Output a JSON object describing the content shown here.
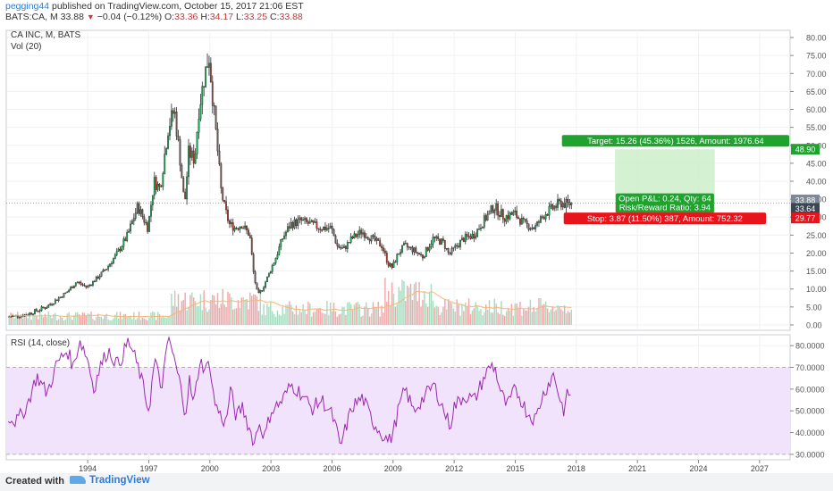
{
  "header": {
    "author": "pegging44",
    "published": " published on TradingView.com, October 15, 2017 21:06 EST",
    "symbol": "BATS:CA, M",
    "last": "33.88",
    "change": "−0.04 (−0.12%)",
    "o_label": "O:",
    "o_val": "33.36",
    "h_label": "H:",
    "h_val": "34.17",
    "l_label": "L:",
    "l_val": "33.25",
    "c_label": "C:",
    "c_val": "33.88"
  },
  "footer": {
    "created_with": "Created with",
    "brand": "TradingView"
  },
  "colors": {
    "up": "#26a65b",
    "down": "#c0392b",
    "vol_up": "#a8dcc1",
    "vol_down": "#f2a7ab",
    "rsi_line": "#9c27b0",
    "rsi_band": "#f1e3fb",
    "target": "#1fa22e",
    "stop": "#e8141c",
    "vol_ma": "#f5b775"
  },
  "chart_data": [
    {
      "type": "candlestick",
      "title": "CA INC, M, BATS",
      "volume_label": "Vol (20)",
      "x_ticks": [
        "1994",
        "1997",
        "2000",
        "2003",
        "2006",
        "2009",
        "2012",
        "2015",
        "2018",
        "2021",
        "2024",
        "2027"
      ],
      "x_range": [
        1990.0,
        2028.5
      ],
      "y_ticks": [
        "0.00",
        "5.00",
        "10.00",
        "15.00",
        "20.00",
        "25.00",
        "30.00",
        "35.00",
        "40.00",
        "45.00",
        "50.00",
        "55.00",
        "60.00",
        "65.00",
        "70.00",
        "75.00",
        "80.00"
      ],
      "y_range": [
        -1.5,
        82.0
      ],
      "price_path": [
        [
          1990.0,
          2.2
        ],
        [
          1991.0,
          2.8
        ],
        [
          1992.0,
          5.0
        ],
        [
          1993.0,
          9.0
        ],
        [
          1993.5,
          12.0
        ],
        [
          1994.0,
          10.5
        ],
        [
          1994.5,
          13.0
        ],
        [
          1995.0,
          16.0
        ],
        [
          1995.5,
          20.0
        ],
        [
          1996.0,
          25.0
        ],
        [
          1996.5,
          33.0
        ],
        [
          1997.0,
          27.0
        ],
        [
          1997.3,
          40.0
        ],
        [
          1997.6,
          38.0
        ],
        [
          1998.0,
          55.0
        ],
        [
          1998.3,
          60.0
        ],
        [
          1998.6,
          45.0
        ],
        [
          1998.8,
          33.0
        ],
        [
          1999.0,
          48.0
        ],
        [
          1999.3,
          46.0
        ],
        [
          1999.5,
          60.0
        ],
        [
          1999.8,
          70.0
        ],
        [
          2000.0,
          75.0
        ],
        [
          2000.2,
          62.0
        ],
        [
          2000.4,
          50.0
        ],
        [
          2000.6,
          37.0
        ],
        [
          2000.8,
          32.0
        ],
        [
          2001.0,
          28.0
        ],
        [
          2001.3,
          27.0
        ],
        [
          2001.6,
          28.0
        ],
        [
          2002.0,
          25.0
        ],
        [
          2002.2,
          14.0
        ],
        [
          2002.4,
          8.0
        ],
        [
          2002.7,
          11.0
        ],
        [
          2003.0,
          15.0
        ],
        [
          2003.3,
          19.0
        ],
        [
          2003.6,
          24.0
        ],
        [
          2004.0,
          28.0
        ],
        [
          2004.5,
          29.0
        ],
        [
          2005.0,
          28.0
        ],
        [
          2005.5,
          27.0
        ],
        [
          2006.0,
          27.0
        ],
        [
          2006.3,
          22.0
        ],
        [
          2006.6,
          21.0
        ],
        [
          2007.0,
          24.0
        ],
        [
          2007.5,
          26.0
        ],
        [
          2008.0,
          24.0
        ],
        [
          2008.5,
          22.0
        ],
        [
          2008.8,
          17.0
        ],
        [
          2009.0,
          16.0
        ],
        [
          2009.3,
          20.0
        ],
        [
          2009.6,
          22.0
        ],
        [
          2010.0,
          21.0
        ],
        [
          2010.5,
          19.0
        ],
        [
          2011.0,
          24.0
        ],
        [
          2011.5,
          23.0
        ],
        [
          2011.8,
          19.5
        ],
        [
          2012.0,
          21.0
        ],
        [
          2012.5,
          24.0
        ],
        [
          2013.0,
          25.0
        ],
        [
          2013.5,
          29.0
        ],
        [
          2014.0,
          33.0
        ],
        [
          2014.5,
          30.0
        ],
        [
          2015.0,
          31.0
        ],
        [
          2015.5,
          28.0
        ],
        [
          2016.0,
          27.0
        ],
        [
          2016.5,
          31.0
        ],
        [
          2017.0,
          33.0
        ],
        [
          2017.3,
          34.0
        ],
        [
          2017.6,
          33.5
        ],
        [
          2017.8,
          33.88
        ]
      ],
      "current_price": 33.88,
      "dotted_line_price": 33.88,
      "position": {
        "entry": 33.64,
        "target_price": 48.9,
        "stop_price": 29.77,
        "start_x": 2019.9,
        "end_x": 2024.8,
        "target_label": "Target: 15.26 (45.36%) 1526, Amount: 1976.64",
        "open_label": "Open P&L: 0.24, Qty: 64",
        "rr_label": "Risk/Reward Ratio: 3.94",
        "stop_label": "Stop: 3.87 (11.50%) 387, Amount: 752.32",
        "target_badge": "48.90",
        "current_badge": "33.88",
        "entry_badge": "33.64",
        "stop_badge": "29.77"
      }
    },
    {
      "type": "line",
      "title": "RSI (14, close)",
      "y_ticks": [
        "30.0000",
        "40.0000",
        "50.0000",
        "60.0000",
        "70.0000",
        "80.0000"
      ],
      "y_range": [
        27.5,
        85.0
      ],
      "band": [
        30,
        70
      ],
      "rsi_path": [
        [
          1990.0,
          48
        ],
        [
          1990.5,
          45
        ],
        [
          1991.0,
          52
        ],
        [
          1991.5,
          66
        ],
        [
          1992.0,
          58
        ],
        [
          1992.5,
          72
        ],
        [
          1993.0,
          78
        ],
        [
          1993.3,
          70
        ],
        [
          1993.6,
          83
        ],
        [
          1994.0,
          74
        ],
        [
          1994.3,
          60
        ],
        [
          1994.6,
          70
        ],
        [
          1995.0,
          78
        ],
        [
          1995.5,
          71
        ],
        [
          1996.0,
          82
        ],
        [
          1996.3,
          75
        ],
        [
          1996.6,
          66
        ],
        [
          1997.0,
          50
        ],
        [
          1997.3,
          74
        ],
        [
          1997.6,
          60
        ],
        [
          1998.0,
          84
        ],
        [
          1998.2,
          75
        ],
        [
          1998.5,
          64
        ],
        [
          1998.8,
          49
        ],
        [
          1999.0,
          64
        ],
        [
          1999.2,
          52
        ],
        [
          1999.5,
          73
        ],
        [
          1999.8,
          69
        ],
        [
          2000.0,
          72
        ],
        [
          2000.2,
          55
        ],
        [
          2000.5,
          48
        ],
        [
          2000.8,
          44
        ],
        [
          2001.0,
          60
        ],
        [
          2001.3,
          47
        ],
        [
          2001.6,
          52
        ],
        [
          2002.0,
          40
        ],
        [
          2002.2,
          35
        ],
        [
          2002.4,
          45
        ],
        [
          2002.7,
          38
        ],
        [
          2003.0,
          50
        ],
        [
          2003.5,
          54
        ],
        [
          2004.0,
          62
        ],
        [
          2004.5,
          58
        ],
        [
          2005.0,
          51
        ],
        [
          2005.5,
          55
        ],
        [
          2006.0,
          48
        ],
        [
          2006.2,
          42
        ],
        [
          2006.4,
          33
        ],
        [
          2006.7,
          43
        ],
        [
          2007.0,
          52
        ],
        [
          2007.5,
          56
        ],
        [
          2008.0,
          45
        ],
        [
          2008.5,
          39
        ],
        [
          2008.8,
          36
        ],
        [
          2009.0,
          40
        ],
        [
          2009.3,
          52
        ],
        [
          2009.6,
          60
        ],
        [
          2010.0,
          50
        ],
        [
          2010.5,
          56
        ],
        [
          2011.0,
          62
        ],
        [
          2011.5,
          50
        ],
        [
          2011.8,
          43
        ],
        [
          2012.0,
          52
        ],
        [
          2012.5,
          57
        ],
        [
          2013.0,
          55
        ],
        [
          2013.5,
          66
        ],
        [
          2013.8,
          71
        ],
        [
          2014.0,
          70
        ],
        [
          2014.3,
          58
        ],
        [
          2014.6,
          52
        ],
        [
          2015.0,
          60
        ],
        [
          2015.3,
          55
        ],
        [
          2015.6,
          49
        ],
        [
          2016.0,
          46
        ],
        [
          2016.3,
          56
        ],
        [
          2016.6,
          62
        ],
        [
          2016.9,
          67
        ],
        [
          2017.0,
          63
        ],
        [
          2017.2,
          55
        ],
        [
          2017.4,
          50
        ],
        [
          2017.6,
          59
        ],
        [
          2017.8,
          56
        ]
      ]
    }
  ]
}
